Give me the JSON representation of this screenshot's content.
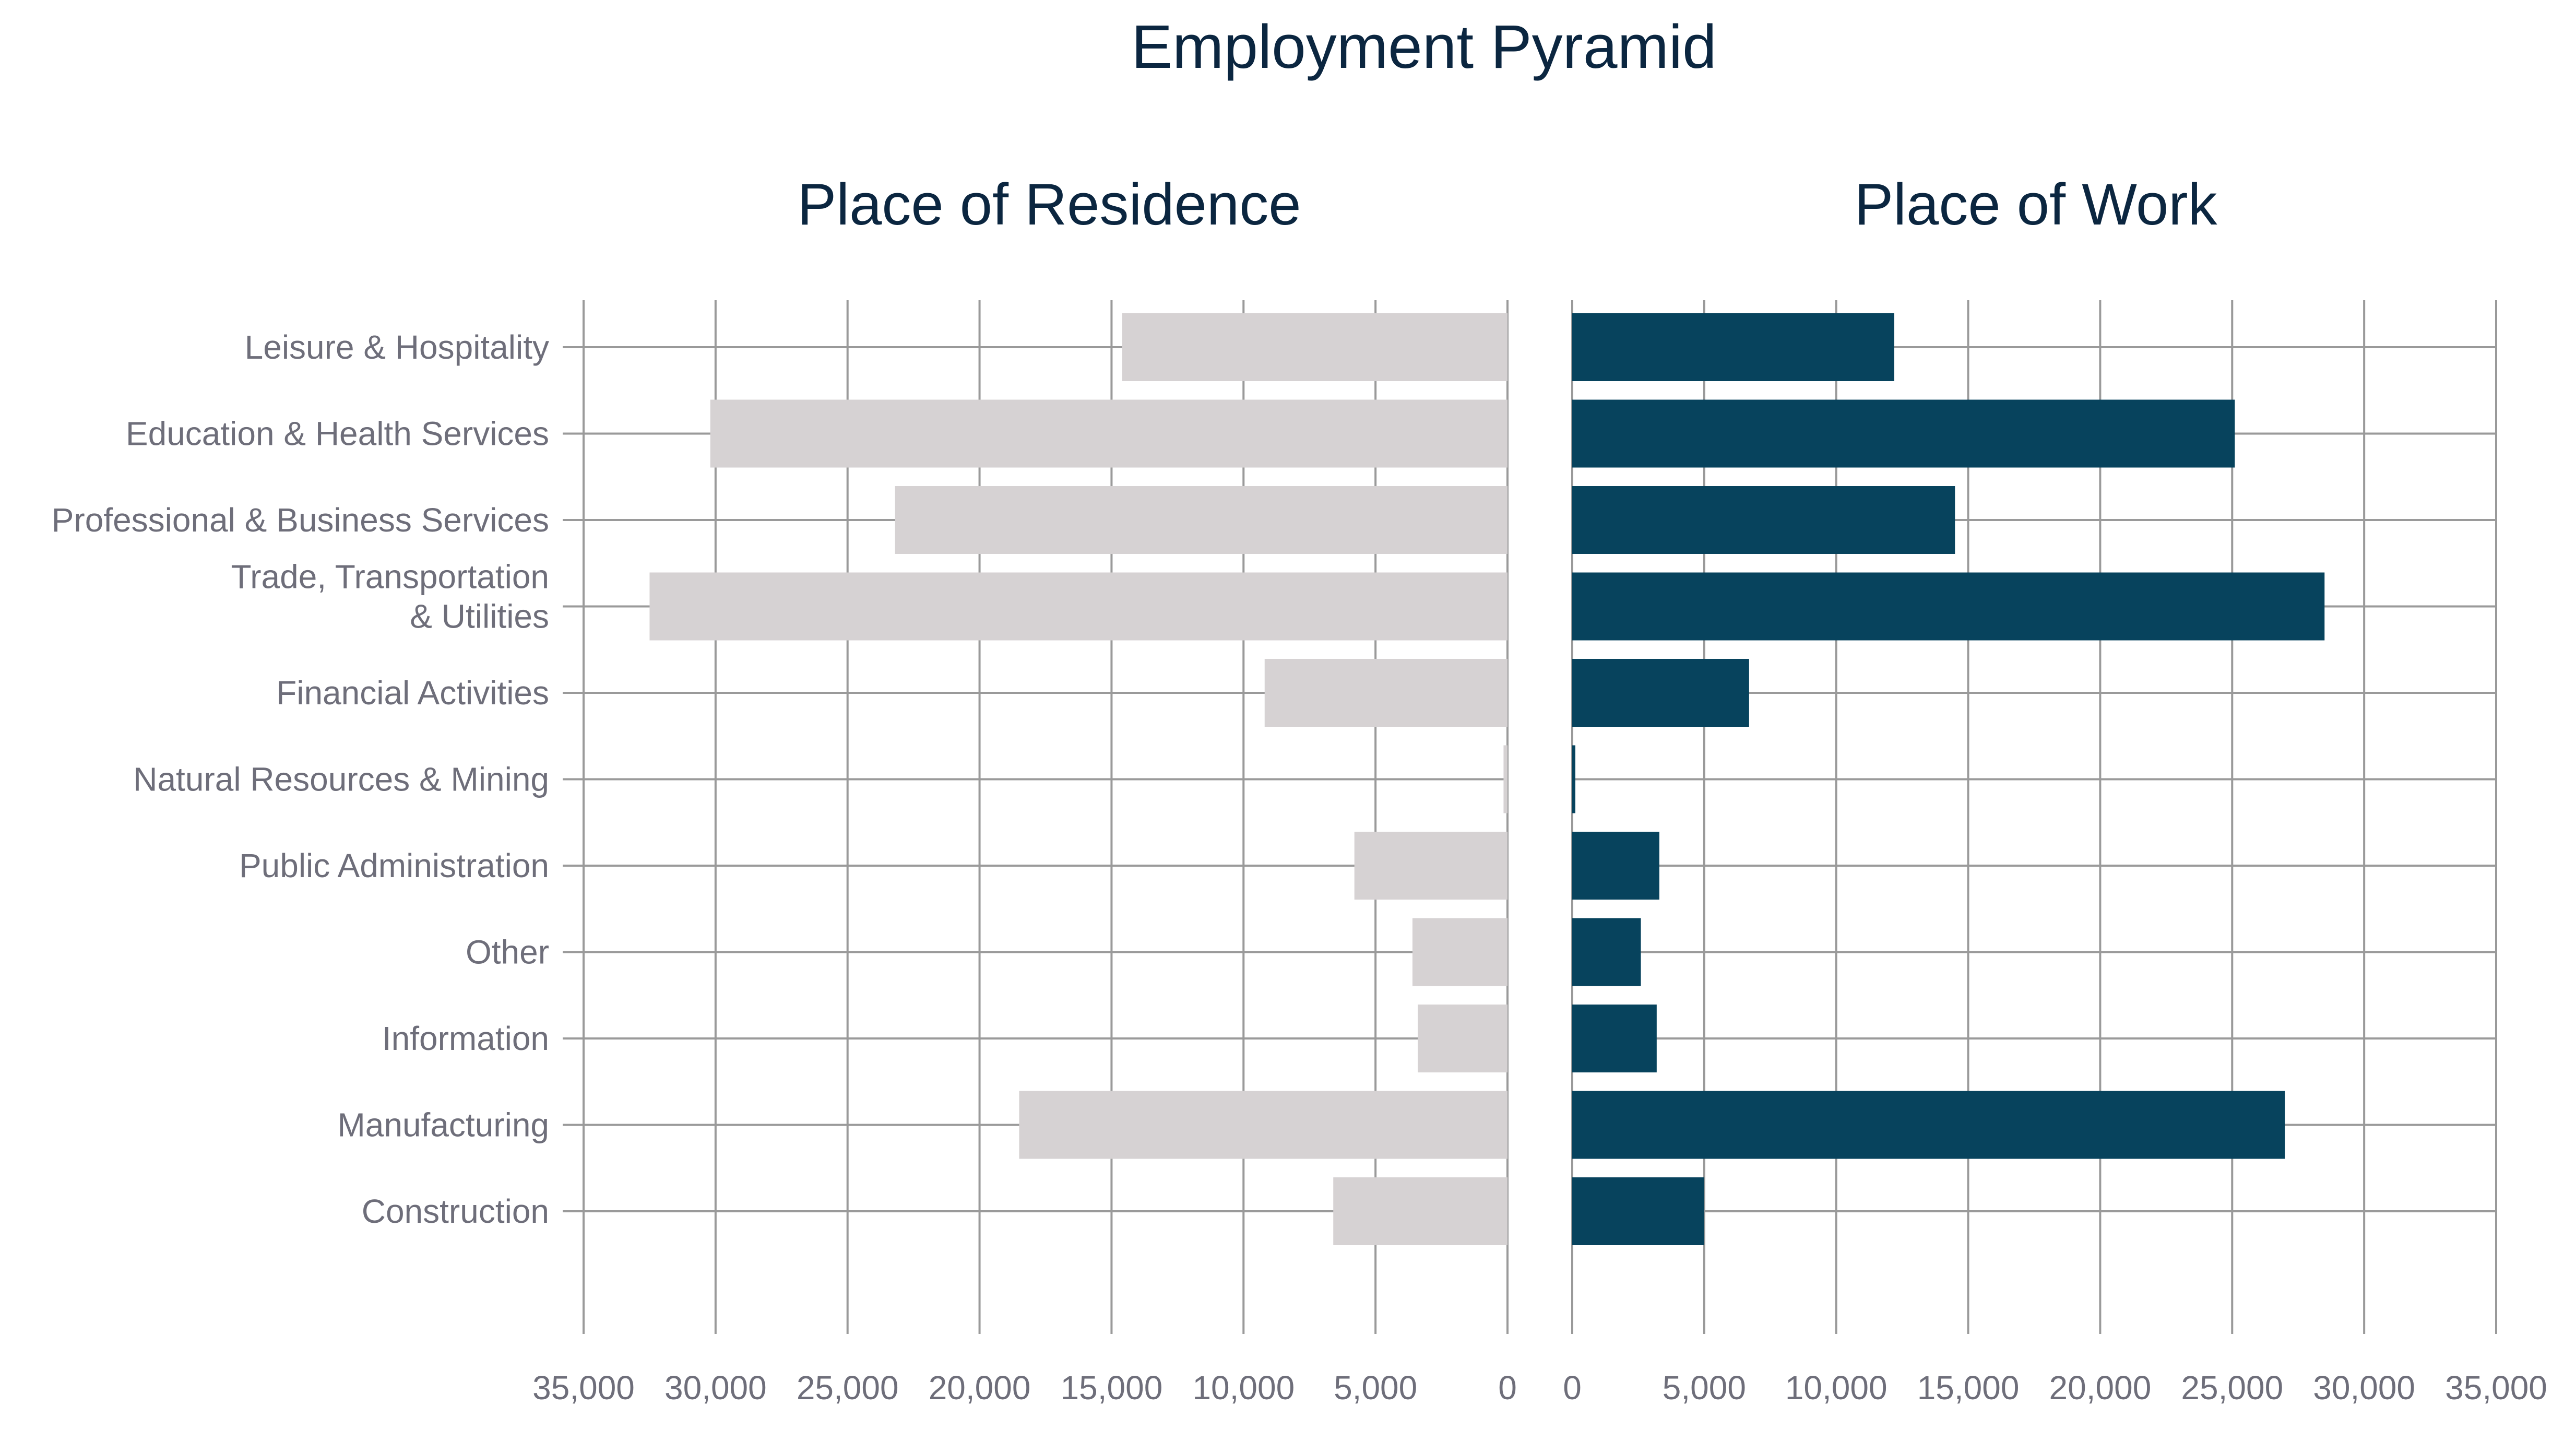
{
  "chart_data": {
    "type": "bar",
    "title": "Employment Pyramid",
    "categories": [
      "Leisure & Hospitality",
      "Education & Health Services",
      "Professional & Business Services",
      "Trade, Transportation & Utilities",
      "Financial Activities",
      "Natural Resources & Mining",
      "Public Administration",
      "Other",
      "Information",
      "Manufacturing",
      "Construction"
    ],
    "category_lines": [
      [
        "Leisure & Hospitality"
      ],
      [
        "Education & Health Services"
      ],
      [
        "Professional & Business Services"
      ],
      [
        "Trade, Transportation",
        "& Utilities"
      ],
      [
        "Financial Activities"
      ],
      [
        "Natural Resources & Mining"
      ],
      [
        "Public Administration"
      ],
      [
        "Other"
      ],
      [
        "Information"
      ],
      [
        "Manufacturing"
      ],
      [
        "Construction"
      ]
    ],
    "panels": [
      {
        "title": "Place of Residence",
        "direction": "left",
        "color": "#d6d2d3",
        "values": [
          14600,
          30200,
          23200,
          32500,
          9200,
          150,
          5800,
          3600,
          3400,
          18500,
          6600
        ],
        "xlim": [
          0,
          35000
        ],
        "ticks": [
          "35,000",
          "30,000",
          "25,000",
          "20,000",
          "15,000",
          "10,000",
          "5,000",
          "0"
        ]
      },
      {
        "title": "Place of Work",
        "direction": "right",
        "color": "#07435d",
        "values": [
          12200,
          25100,
          14500,
          28500,
          6700,
          100,
          3300,
          2600,
          3200,
          27000,
          5000
        ],
        "xlim": [
          0,
          35000
        ],
        "ticks": [
          "0",
          "5,000",
          "10,000",
          "15,000",
          "20,000",
          "25,000",
          "30,000",
          "35,000"
        ]
      }
    ],
    "grid": true,
    "gridline_color": "#9a9a9a"
  }
}
